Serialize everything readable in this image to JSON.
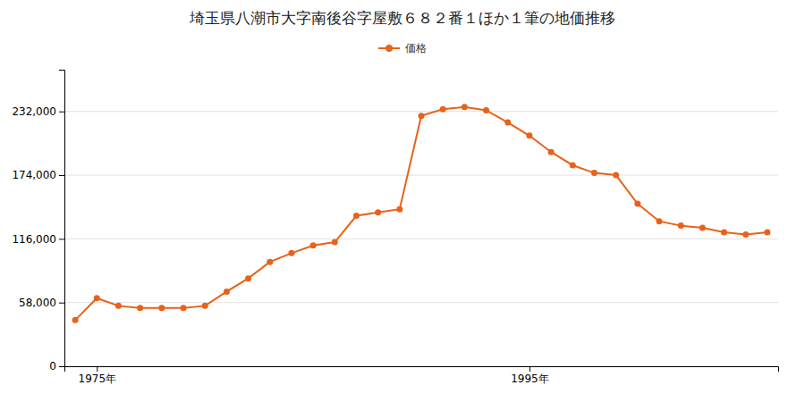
{
  "chart_data": {
    "type": "line",
    "title": "埼玉県八潮市大字南後谷字屋敷６８２番１ほか１筆の地価推移",
    "x": [
      1974,
      1975,
      1976,
      1977,
      1978,
      1979,
      1980,
      1981,
      1982,
      1983,
      1984,
      1985,
      1986,
      1987,
      1988,
      1989,
      1990,
      1991,
      1992,
      1993,
      1994,
      1995,
      1996,
      1997,
      1998,
      1999,
      2000,
      2001,
      2002,
      2003,
      2004,
      2005,
      2006
    ],
    "series": [
      {
        "name": "価格",
        "color": "#e8621a",
        "marker": "circle",
        "values": [
          42000,
          62000,
          55000,
          53000,
          53000,
          53000,
          55000,
          68000,
          80000,
          95000,
          103000,
          110000,
          113000,
          137000,
          140000,
          143000,
          228000,
          234000,
          236000,
          233000,
          222000,
          210000,
          195000,
          183000,
          176000,
          174000,
          148000,
          132000,
          128000,
          126000,
          122000,
          120000,
          122000
        ]
      }
    ],
    "xlim": [
      1973.5,
      2006.5
    ],
    "xticks": [
      {
        "value": 1975,
        "label": "1975年"
      },
      {
        "value": 1995,
        "label": "1995年"
      }
    ],
    "ylim": [
      0,
      270000
    ],
    "yticks": [
      0,
      {
        "value": 58000,
        "label": "58,000"
      },
      {
        "value": 116000,
        "label": "116,000"
      },
      {
        "value": 174000,
        "label": "174,000"
      },
      {
        "value": 232000,
        "label": "232,000"
      }
    ],
    "grid": true,
    "legend": "top"
  }
}
